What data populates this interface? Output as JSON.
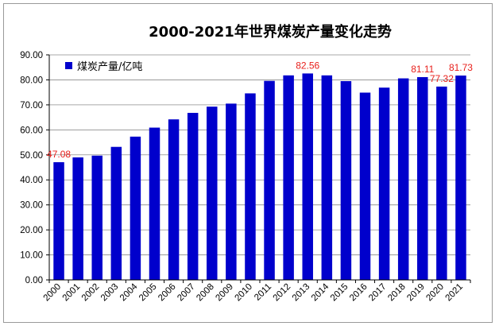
{
  "chart_data": {
    "type": "bar",
    "title": "2000-2021年世界煤炭产量变化走势",
    "xlabel": "",
    "ylabel": "",
    "categories": [
      "2000",
      "2001",
      "2002",
      "2003",
      "2004",
      "2005",
      "2006",
      "2007",
      "2008",
      "2009",
      "2010",
      "2011",
      "2012",
      "2013",
      "2014",
      "2015",
      "2016",
      "2017",
      "2018",
      "2019",
      "2020",
      "2021"
    ],
    "series": [
      {
        "name": "煤炭产量/亿吨",
        "values": [
          47.08,
          49.0,
          49.7,
          53.2,
          57.3,
          60.9,
          64.2,
          66.8,
          69.3,
          70.5,
          74.6,
          79.6,
          81.8,
          82.56,
          81.8,
          79.5,
          74.9,
          76.9,
          80.6,
          81.11,
          77.32,
          81.73
        ]
      }
    ],
    "data_labels": [
      {
        "category": "2000",
        "text": "47.08"
      },
      {
        "category": "2013",
        "text": "82.56"
      },
      {
        "category": "2019",
        "text": "81.11"
      },
      {
        "category": "2020",
        "text": "77.32"
      },
      {
        "category": "2021",
        "text": "81.73"
      }
    ],
    "ylim": [
      0,
      90
    ],
    "ytick_step": 10,
    "ytick_labels": [
      "0.00",
      "10.00",
      "20.00",
      "30.00",
      "40.00",
      "50.00",
      "60.00",
      "70.00",
      "80.00",
      "90.00"
    ],
    "grid": true,
    "legend_position": "top-left",
    "colors": {
      "bar": "#0000cc",
      "grid": "#8c8c8c",
      "axis": "#000000",
      "data_label": "#e8201c"
    }
  }
}
